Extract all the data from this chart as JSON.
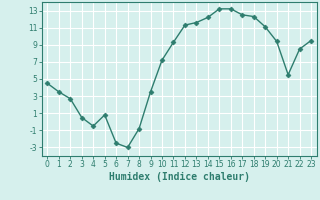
{
  "x": [
    0,
    1,
    2,
    3,
    4,
    5,
    6,
    7,
    8,
    9,
    10,
    11,
    12,
    13,
    14,
    15,
    16,
    17,
    18,
    19,
    20,
    21,
    22,
    23
  ],
  "y": [
    4.5,
    3.5,
    2.7,
    0.5,
    -0.5,
    0.8,
    -2.5,
    -3.0,
    -0.8,
    3.5,
    7.2,
    9.3,
    11.3,
    11.6,
    12.2,
    13.2,
    13.2,
    12.5,
    12.3,
    11.1,
    9.4,
    5.5,
    8.5,
    9.5
  ],
  "line_color": "#2e7d6e",
  "marker": "D",
  "marker_size": 2.5,
  "bg_color": "#d6f0ed",
  "grid_color": "#ffffff",
  "tick_color": "#2e7d6e",
  "xlabel": "Humidex (Indice chaleur)",
  "xlabel_fontsize": 7,
  "ylim": [
    -4,
    14
  ],
  "xlim": [
    -0.5,
    23.5
  ],
  "yticks": [
    -3,
    -1,
    1,
    3,
    5,
    7,
    9,
    11,
    13
  ],
  "xticks": [
    0,
    1,
    2,
    3,
    4,
    5,
    6,
    7,
    8,
    9,
    10,
    11,
    12,
    13,
    14,
    15,
    16,
    17,
    18,
    19,
    20,
    21,
    22,
    23
  ],
  "tick_fontsize": 5.5,
  "linewidth": 1.0
}
